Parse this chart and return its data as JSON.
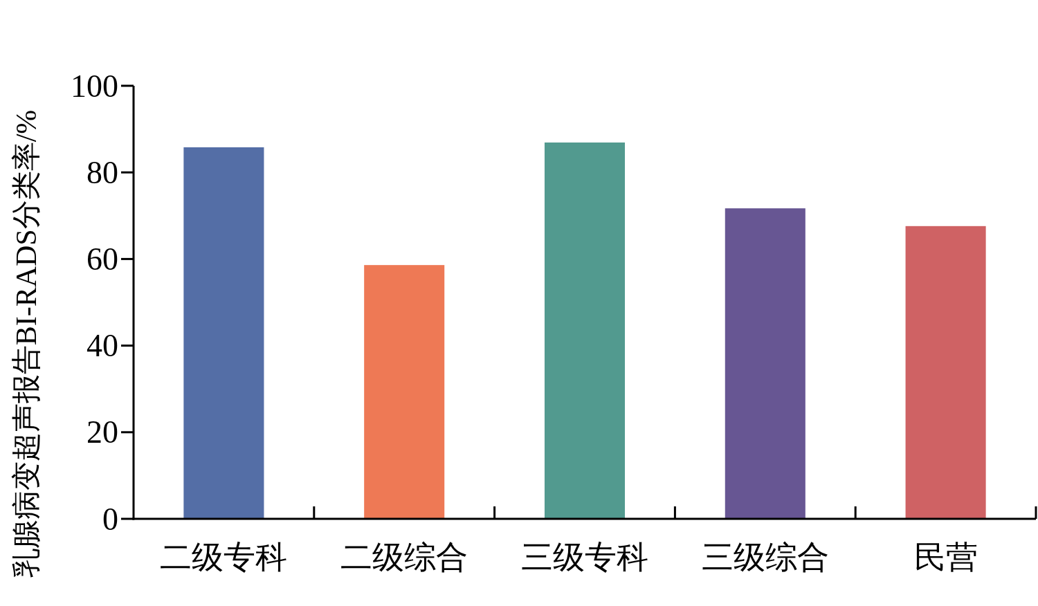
{
  "chart_data": {
    "type": "bar",
    "ylabel": "乳腺病变超声报告BI-RADS分类率/%",
    "categories": [
      "二级专科",
      "二级综合",
      "三级专科",
      "三级综合",
      "民营"
    ],
    "values": [
      85.8,
      58.6,
      86.9,
      71.7,
      67.6
    ],
    "colors": [
      "#546ea6",
      "#ee7955",
      "#529a8f",
      "#675693",
      "#cf6264"
    ],
    "ylim": [
      0,
      100
    ],
    "yticks": [
      0,
      20,
      40,
      60,
      80,
      100
    ]
  }
}
